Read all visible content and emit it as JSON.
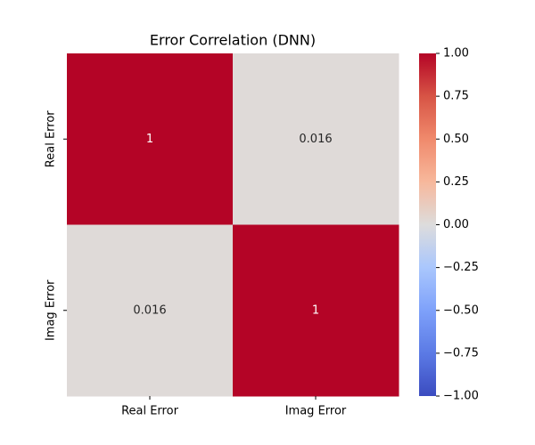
{
  "chart_data": {
    "type": "heatmap",
    "title": "Error Correlation (DNN)",
    "x_categories": [
      "Real Error",
      "Imag Error"
    ],
    "y_categories": [
      "Real Error",
      "Imag Error"
    ],
    "values": [
      [
        1,
        0.016
      ],
      [
        0.016,
        1
      ]
    ],
    "colormap": "coolwarm",
    "clim": [
      -1,
      1
    ],
    "cticks": [
      {
        "value": -1,
        "label": "−1.00"
      },
      {
        "value": -0.75,
        "label": "−0.75"
      },
      {
        "value": -0.5,
        "label": "−0.50"
      },
      {
        "value": -0.25,
        "label": "−0.25"
      },
      {
        "value": 0,
        "label": "0.00"
      },
      {
        "value": 0.25,
        "label": "0.25"
      },
      {
        "value": 0.5,
        "label": "0.50"
      },
      {
        "value": 0.75,
        "label": "0.75"
      },
      {
        "value": 1,
        "label": "1.00"
      }
    ]
  }
}
